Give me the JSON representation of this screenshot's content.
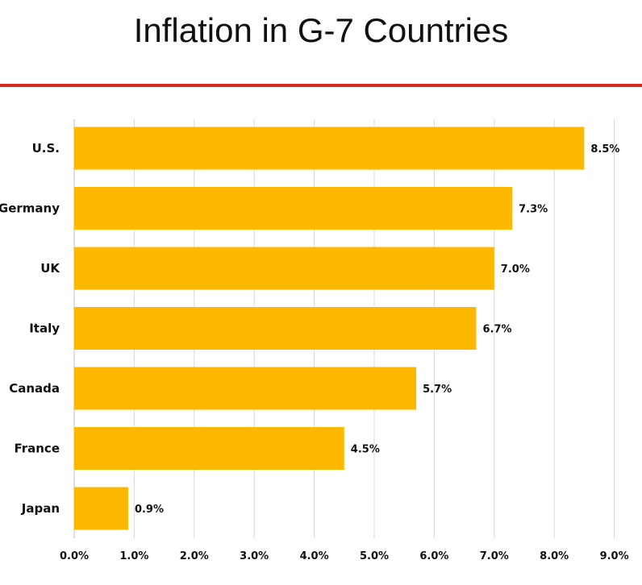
{
  "chart_data": {
    "type": "bar",
    "orientation": "horizontal",
    "title": "Inflation in G-7 Countries",
    "categories": [
      "U.S.",
      "Germany",
      "UK",
      "Italy",
      "Canada",
      "France",
      "Japan"
    ],
    "values": [
      8.5,
      7.3,
      7.0,
      6.7,
      5.7,
      4.5,
      0.9
    ],
    "value_labels": [
      "8.5%",
      "7.3%",
      "7.0%",
      "6.7%",
      "5.7%",
      "4.5%",
      "0.9%"
    ],
    "x_ticks": [
      "0.0%",
      "1.0%",
      "2.0%",
      "3.0%",
      "4.0%",
      "5.0%",
      "6.0%",
      "7.0%",
      "8.0%",
      "9.0%"
    ],
    "xlim": [
      0,
      9
    ],
    "xlabel": "",
    "ylabel": "",
    "grid": "vertical",
    "bar_color": "#FFB800",
    "rule_color": "#D52B1E"
  }
}
